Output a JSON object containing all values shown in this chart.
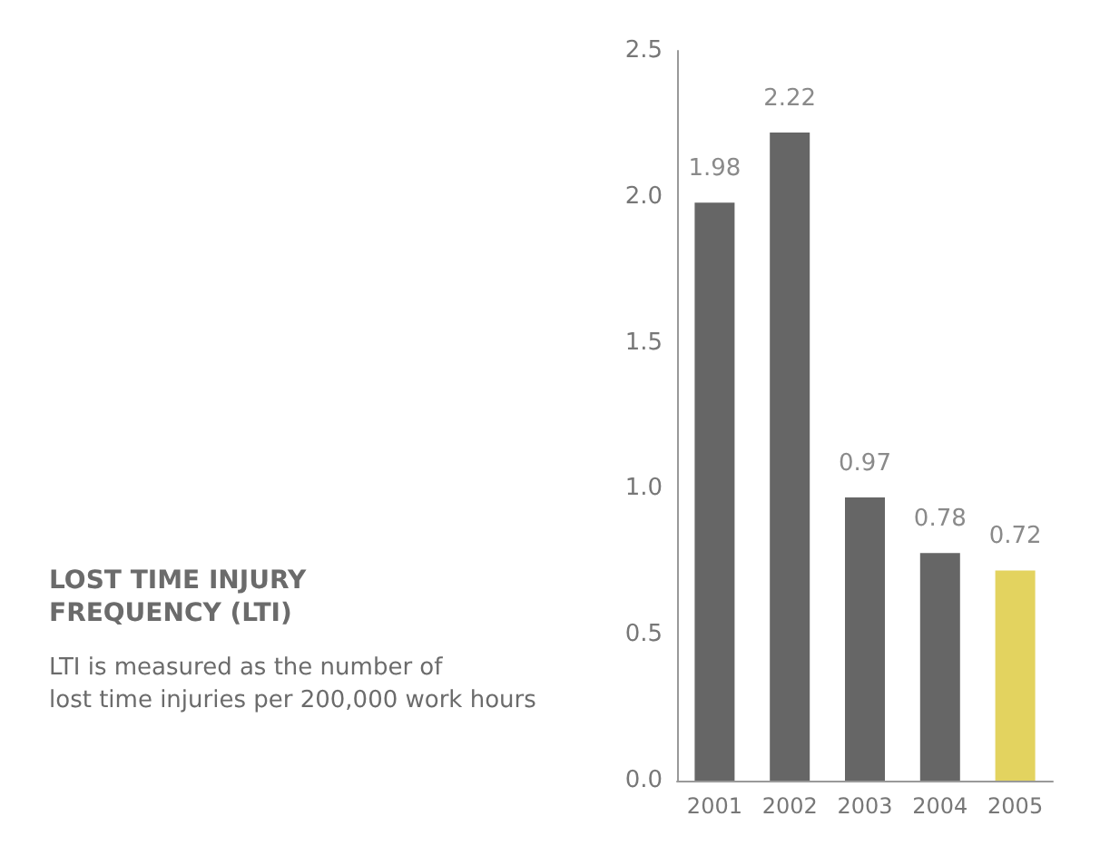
{
  "chart_data": {
    "type": "bar",
    "title": "LOST TIME INJURY\nFREQUENCY (LTI)",
    "subtitle": "LTI is measured as the number of\nlost time injuries per 200,000 work hours",
    "categories": [
      "2001",
      "2002",
      "2003",
      "2004",
      "2005"
    ],
    "values": [
      1.98,
      2.22,
      0.97,
      0.78,
      0.72
    ],
    "colors": [
      "#666666",
      "#666666",
      "#666666",
      "#666666",
      "#e3d35f"
    ],
    "ylim": [
      0,
      2.5
    ],
    "yticks": [
      {
        "value": 0,
        "label": "0.0"
      },
      {
        "value": 0.5,
        "label": "0.5"
      },
      {
        "value": 1,
        "label": "1.0"
      },
      {
        "value": 1.5,
        "label": "1.5"
      },
      {
        "value": 2,
        "label": "2.0"
      },
      {
        "value": 2.5,
        "label": "2.5"
      }
    ],
    "data_labels": true,
    "grid": false
  }
}
